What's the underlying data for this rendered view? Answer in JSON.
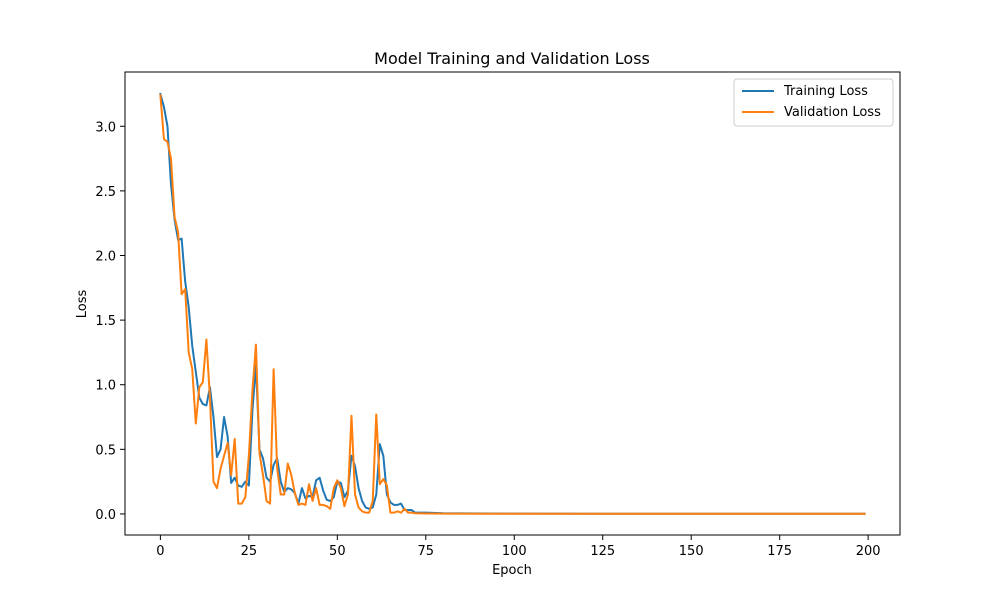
{
  "chart_data": {
    "type": "line",
    "title": "Model Training and Validation Loss",
    "xlabel": "Epoch",
    "ylabel": "Loss",
    "xlim": [
      -10,
      209
    ],
    "ylim": [
      -0.163,
      3.42
    ],
    "x_ticks": [
      0,
      25,
      50,
      75,
      100,
      125,
      150,
      175,
      200
    ],
    "y_ticks": [
      0.0,
      0.5,
      1.0,
      1.5,
      2.0,
      2.5,
      3.0
    ],
    "y_tick_labels": [
      "0.0",
      "0.5",
      "1.0",
      "1.5",
      "2.0",
      "2.5",
      "3.0"
    ],
    "grid": false,
    "legend": {
      "position": "top-right"
    },
    "series": [
      {
        "name": "Training Loss",
        "color": "#1f77b4",
        "points": [
          [
            0,
            3.25
          ],
          [
            1,
            3.15
          ],
          [
            2,
            3.0
          ],
          [
            3,
            2.55
          ],
          [
            4,
            2.28
          ],
          [
            5,
            2.12
          ],
          [
            6,
            2.13
          ],
          [
            7,
            1.8
          ],
          [
            8,
            1.6
          ],
          [
            9,
            1.3
          ],
          [
            10,
            1.1
          ],
          [
            11,
            0.9
          ],
          [
            12,
            0.85
          ],
          [
            13,
            0.84
          ],
          [
            14,
            0.98
          ],
          [
            15,
            0.75
          ],
          [
            16,
            0.44
          ],
          [
            17,
            0.5
          ],
          [
            18,
            0.75
          ],
          [
            19,
            0.6
          ],
          [
            20,
            0.24
          ],
          [
            21,
            0.28
          ],
          [
            22,
            0.22
          ],
          [
            23,
            0.21
          ],
          [
            24,
            0.25
          ],
          [
            25,
            0.22
          ],
          [
            26,
            0.8
          ],
          [
            27,
            1.15
          ],
          [
            28,
            0.5
          ],
          [
            29,
            0.43
          ],
          [
            30,
            0.28
          ],
          [
            31,
            0.25
          ],
          [
            32,
            0.38
          ],
          [
            33,
            0.43
          ],
          [
            34,
            0.25
          ],
          [
            35,
            0.17
          ],
          [
            36,
            0.2
          ],
          [
            37,
            0.19
          ],
          [
            38,
            0.16
          ],
          [
            39,
            0.08
          ],
          [
            40,
            0.2
          ],
          [
            41,
            0.12
          ],
          [
            42,
            0.14
          ],
          [
            43,
            0.13
          ],
          [
            44,
            0.26
          ],
          [
            45,
            0.28
          ],
          [
            46,
            0.18
          ],
          [
            47,
            0.11
          ],
          [
            48,
            0.1
          ],
          [
            49,
            0.13
          ],
          [
            50,
            0.25
          ],
          [
            51,
            0.24
          ],
          [
            52,
            0.13
          ],
          [
            53,
            0.18
          ],
          [
            54,
            0.45
          ],
          [
            55,
            0.37
          ],
          [
            56,
            0.2
          ],
          [
            57,
            0.1
          ],
          [
            58,
            0.05
          ],
          [
            59,
            0.04
          ],
          [
            60,
            0.05
          ],
          [
            61,
            0.15
          ],
          [
            62,
            0.54
          ],
          [
            63,
            0.45
          ],
          [
            64,
            0.15
          ],
          [
            65,
            0.09
          ],
          [
            66,
            0.07
          ],
          [
            67,
            0.07
          ],
          [
            68,
            0.08
          ],
          [
            69,
            0.03
          ],
          [
            70,
            0.03
          ],
          [
            71,
            0.03
          ],
          [
            72,
            0.01
          ],
          [
            75,
            0.01
          ],
          [
            80,
            0.005
          ],
          [
            90,
            0.003
          ],
          [
            100,
            0.002
          ],
          [
            125,
            0.001
          ],
          [
            150,
            0.001
          ],
          [
            175,
            0.001
          ],
          [
            199,
            0.001
          ]
        ]
      },
      {
        "name": "Validation Loss",
        "color": "#ff7f0e",
        "points": [
          [
            0,
            3.24
          ],
          [
            1,
            2.9
          ],
          [
            2,
            2.88
          ],
          [
            3,
            2.75
          ],
          [
            4,
            2.3
          ],
          [
            5,
            2.18
          ],
          [
            6,
            1.7
          ],
          [
            7,
            1.74
          ],
          [
            8,
            1.25
          ],
          [
            9,
            1.12
          ],
          [
            10,
            0.7
          ],
          [
            11,
            0.98
          ],
          [
            12,
            1.02
          ],
          [
            13,
            1.35
          ],
          [
            14,
            0.9
          ],
          [
            15,
            0.25
          ],
          [
            16,
            0.2
          ],
          [
            17,
            0.35
          ],
          [
            18,
            0.45
          ],
          [
            19,
            0.55
          ],
          [
            20,
            0.3
          ],
          [
            21,
            0.58
          ],
          [
            22,
            0.08
          ],
          [
            23,
            0.08
          ],
          [
            24,
            0.13
          ],
          [
            25,
            0.45
          ],
          [
            26,
            0.95
          ],
          [
            27,
            1.31
          ],
          [
            28,
            0.47
          ],
          [
            29,
            0.3
          ],
          [
            30,
            0.1
          ],
          [
            31,
            0.08
          ],
          [
            32,
            1.12
          ],
          [
            33,
            0.35
          ],
          [
            34,
            0.15
          ],
          [
            35,
            0.15
          ],
          [
            36,
            0.39
          ],
          [
            37,
            0.3
          ],
          [
            38,
            0.16
          ],
          [
            39,
            0.07
          ],
          [
            40,
            0.08
          ],
          [
            41,
            0.07
          ],
          [
            42,
            0.23
          ],
          [
            43,
            0.1
          ],
          [
            44,
            0.2
          ],
          [
            45,
            0.07
          ],
          [
            46,
            0.07
          ],
          [
            47,
            0.06
          ],
          [
            48,
            0.04
          ],
          [
            49,
            0.2
          ],
          [
            50,
            0.26
          ],
          [
            51,
            0.2
          ],
          [
            52,
            0.06
          ],
          [
            53,
            0.15
          ],
          [
            54,
            0.76
          ],
          [
            55,
            0.15
          ],
          [
            56,
            0.05
          ],
          [
            57,
            0.02
          ],
          [
            58,
            0.01
          ],
          [
            59,
            0.01
          ],
          [
            60,
            0.1
          ],
          [
            61,
            0.77
          ],
          [
            62,
            0.23
          ],
          [
            63,
            0.27
          ],
          [
            64,
            0.22
          ],
          [
            65,
            0.01
          ],
          [
            66,
            0.01
          ],
          [
            67,
            0.02
          ],
          [
            68,
            0.01
          ],
          [
            69,
            0.04
          ],
          [
            70,
            0.01
          ],
          [
            71,
            0.01
          ],
          [
            72,
            0.005
          ],
          [
            75,
            0.003
          ],
          [
            80,
            0.002
          ],
          [
            90,
            0.001
          ],
          [
            100,
            0.001
          ],
          [
            125,
            0.001
          ],
          [
            150,
            0.001
          ],
          [
            175,
            0.001
          ],
          [
            199,
            0.001
          ]
        ]
      }
    ]
  }
}
